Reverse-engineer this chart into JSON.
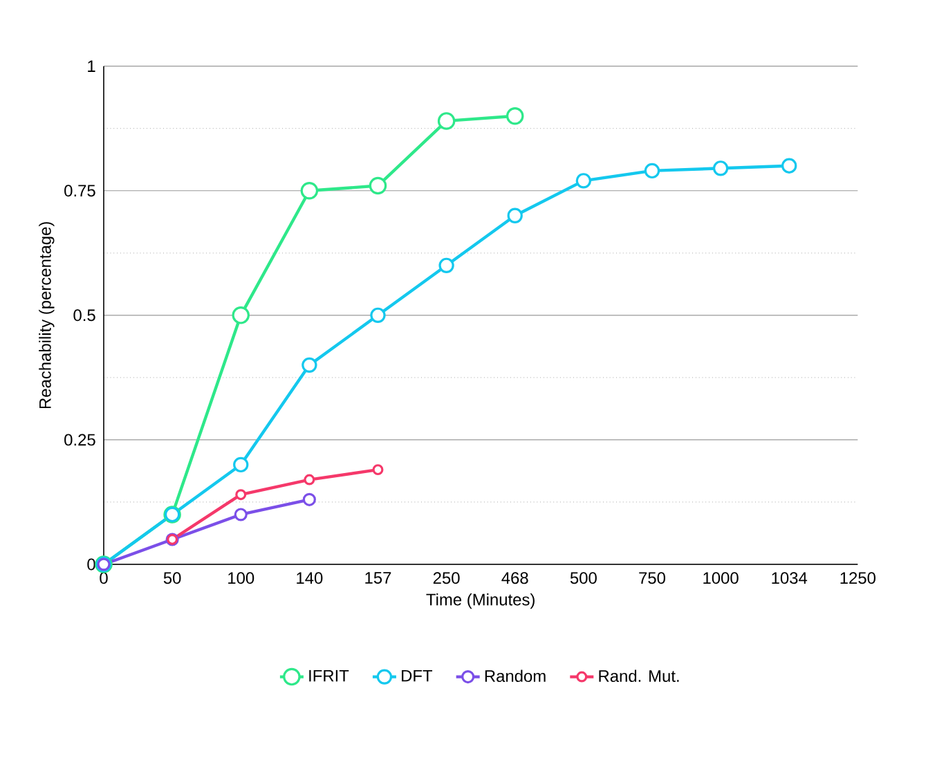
{
  "chart_data": {
    "type": "line",
    "xlabel": "Time (Minutes)",
    "ylabel": "Reachability (percentage)",
    "categories": [
      "0",
      "50",
      "100",
      "140",
      "157",
      "250",
      "468",
      "500",
      "750",
      "1000",
      "1034",
      "1250"
    ],
    "ylim": [
      0,
      1
    ],
    "yticks": [
      0,
      0.25,
      0.5,
      0.75,
      1
    ],
    "grid": "y",
    "legend": "bottom",
    "marker": "circle",
    "line_style": "solid",
    "series": [
      {
        "name": "IFRIT",
        "color": "#2ee88a",
        "values": [
          0,
          0.1,
          0.5,
          0.75,
          0.76,
          0.89,
          0.9,
          null,
          null,
          null,
          null,
          null
        ]
      },
      {
        "name": "DFT",
        "color": "#14c8ee",
        "values": [
          0,
          0.1,
          0.2,
          0.4,
          0.5,
          0.6,
          0.7,
          0.77,
          0.79,
          0.795,
          0.8,
          null
        ]
      },
      {
        "name": "Random",
        "color": "#7b4fe8",
        "values": [
          0,
          0.05,
          0.1,
          0.13,
          null,
          null,
          null,
          null,
          null,
          null,
          null,
          null
        ]
      },
      {
        "name": "Rand. Mut.",
        "color": "#f5386a",
        "values": [
          null,
          0.05,
          0.14,
          0.17,
          0.19,
          null,
          null,
          null,
          null,
          null,
          null,
          null
        ]
      }
    ]
  }
}
